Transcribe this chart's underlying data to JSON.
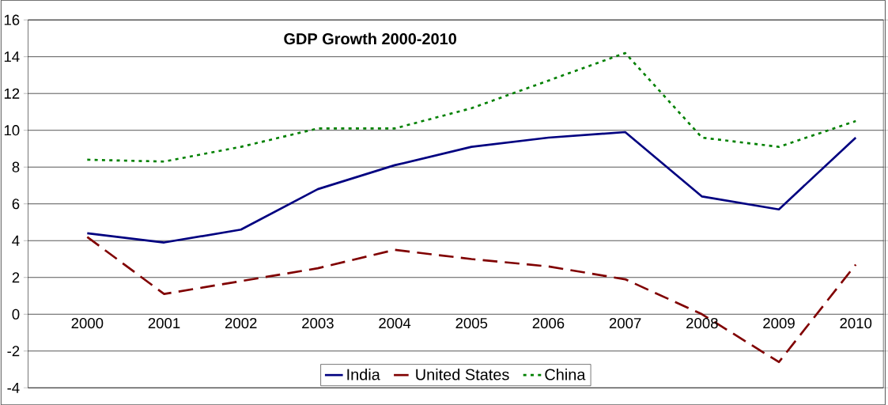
{
  "chart_data": {
    "type": "line",
    "title": "GDP Growth 2000-2010",
    "categories": [
      "2000",
      "2001",
      "2002",
      "2003",
      "2004",
      "2005",
      "2006",
      "2007",
      "2008",
      "2009",
      "2010"
    ],
    "series": [
      {
        "name": "India",
        "color": "#000080",
        "line_style": "solid",
        "values": [
          4.4,
          3.9,
          4.6,
          6.8,
          8.1,
          9.1,
          9.6,
          9.9,
          6.4,
          5.7,
          9.6
        ]
      },
      {
        "name": "United States",
        "color": "#800000",
        "line_style": "dashed",
        "values": [
          4.2,
          1.1,
          1.8,
          2.5,
          3.5,
          3.0,
          2.6,
          1.9,
          0.0,
          -2.6,
          2.7
        ]
      },
      {
        "name": "China",
        "color": "#008000",
        "line_style": "dotted",
        "values": [
          8.4,
          8.3,
          9.1,
          10.1,
          10.1,
          11.2,
          12.7,
          14.2,
          9.6,
          9.1,
          10.5
        ]
      }
    ],
    "ylim": [
      -4,
      16
    ],
    "yticks": [
      -4,
      -2,
      0,
      2,
      4,
      6,
      8,
      10,
      12,
      14,
      16
    ],
    "grid": "y",
    "legend": "bottom",
    "marker": "none"
  }
}
